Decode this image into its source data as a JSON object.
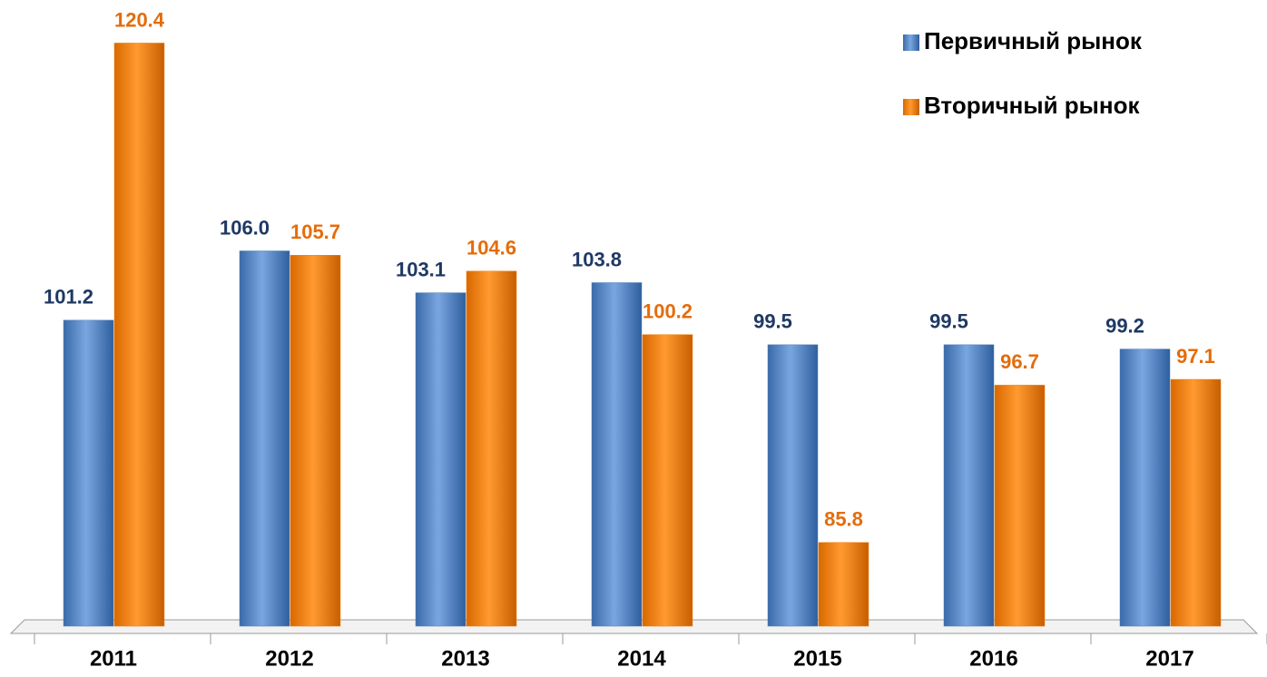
{
  "chart_data": {
    "type": "bar",
    "categories": [
      "2011",
      "2012",
      "2013",
      "2014",
      "2015",
      "2016",
      "2017"
    ],
    "series": [
      {
        "name": "Первичный рынок",
        "color": "#4f81bd",
        "label_color": "#1f3864",
        "values": [
          101.2,
          106.0,
          103.1,
          103.8,
          99.5,
          99.5,
          99.2
        ],
        "value_labels": [
          "101.2",
          "106.0",
          "103.1",
          "103.8",
          "99.5",
          "99.5",
          "99.2"
        ]
      },
      {
        "name": "Вторичный рынок",
        "color": "#f07f09",
        "label_color": "#e46c0a",
        "values": [
          120.4,
          105.7,
          104.6,
          100.2,
          85.8,
          96.7,
          97.1
        ],
        "value_labels": [
          "120.4",
          "105.7",
          "104.6",
          "100.2",
          "85.8",
          "96.7",
          "97.1"
        ]
      }
    ],
    "ylim": [
      80,
      122
    ]
  }
}
